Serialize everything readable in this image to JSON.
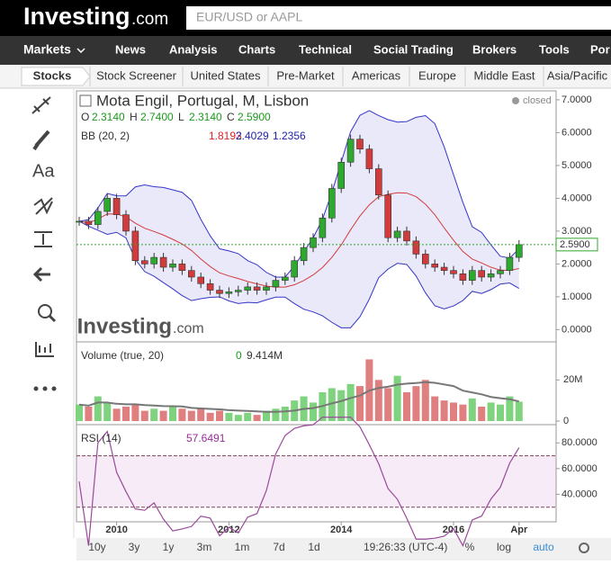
{
  "header": {
    "logo": "Investing",
    "logo_suffix": ".com",
    "search_placeholder": "EUR/USD or AAPL"
  },
  "nav": [
    "Markets",
    "News",
    "Analysis",
    "Charts",
    "Technical",
    "Social Trading",
    "Brokers",
    "Tools",
    "Por"
  ],
  "tabs": [
    "Stocks",
    "Stock Screener",
    "United States",
    "Pre-Market",
    "Americas",
    "Europe",
    "Middle East",
    "Asia/Pacific"
  ],
  "chart": {
    "title": "Mota Engil, Portugal, M, Lisbon",
    "status": "closed",
    "ohlc": {
      "o": {
        "name": "O",
        "value": 2.314,
        "label": "2.3140"
      },
      "h": {
        "name": "H",
        "value": 2.74,
        "label": "2.7400"
      },
      "l": {
        "name": "L",
        "value": 2.314,
        "label": "2.3140"
      },
      "c": {
        "name": "C",
        "value": 2.59,
        "label": "2.5900"
      }
    },
    "bb": {
      "name": "BB (20, 2)",
      "mid": "1.8193",
      "upper": "2.4029",
      "lower": "1.2356"
    },
    "watermark": "Investing",
    "watermark_suffix": ".com",
    "closes": [
      3.3,
      3.2,
      3.6,
      4.0,
      3.5,
      3.0,
      2.1,
      2.0,
      2.2,
      1.9,
      2.0,
      1.8,
      1.6,
      1.4,
      1.2,
      1.1,
      1.15,
      1.2,
      1.3,
      1.2,
      1.3,
      1.5,
      1.6,
      2.1,
      2.5,
      2.8,
      3.4,
      4.3,
      5.1,
      5.8,
      5.5,
      4.9,
      4.1,
      2.8,
      3.0,
      2.7,
      2.3,
      2.0,
      1.9,
      1.8,
      1.7,
      1.5,
      1.8,
      1.6,
      1.7,
      1.8,
      2.2,
      2.59
    ],
    "ylim": [
      -0.1,
      7.3
    ],
    "yticks": [
      {
        "value": 7,
        "label": "7.0000"
      },
      {
        "value": 6,
        "label": "6.0000"
      },
      {
        "value": 5,
        "label": "5.0000"
      },
      {
        "value": 4,
        "label": "4.0000"
      },
      {
        "value": 3,
        "label": "3.0000"
      },
      {
        "value": 2,
        "label": "2.0000"
      },
      {
        "value": 1,
        "label": "1.0000"
      },
      {
        "value": 0,
        "label": "0.0000"
      }
    ],
    "xticks": [
      {
        "value": 4,
        "label": "2010"
      },
      {
        "value": 16,
        "label": "2012"
      },
      {
        "value": 28,
        "label": "2014"
      },
      {
        "value": 40,
        "label": "2016"
      },
      {
        "value": 47,
        "label": "Apr"
      }
    ],
    "volume": {
      "name": "Volume (true, 20)",
      "extra": "0",
      "last_label": "9.414M",
      "values": [
        8,
        7,
        12,
        9,
        6,
        7,
        8,
        5,
        6,
        5,
        7,
        6,
        5,
        6,
        4,
        5,
        4,
        3,
        4,
        3,
        5,
        6,
        7,
        10,
        12,
        9,
        14,
        16,
        15,
        18,
        17,
        30,
        20,
        16,
        22,
        14,
        17,
        20,
        12,
        10,
        9,
        8,
        11,
        7,
        9,
        8,
        12,
        9.414
      ],
      "ylim": [
        0,
        35
      ],
      "yticks": [
        {
          "value": 20,
          "label": "20M"
        },
        0
      ]
    },
    "rsi": {
      "name": "RSI (14)",
      "last_label": "57.6491",
      "ylim": [
        20,
        90
      ],
      "yticks": [
        {
          "value": 80,
          "label": "80.0000"
        },
        {
          "value": 60,
          "label": "60.0000"
        },
        {
          "value": 40,
          "label": "40.0000"
        }
      ],
      "bands": [
        30,
        70
      ]
    }
  },
  "footer": {
    "ranges": [
      "10y",
      "3y",
      "1y",
      "3m",
      "1m",
      "7d",
      "1d"
    ],
    "time": "19:26:33 (UTC-4)",
    "percent": "%",
    "log": "log",
    "auto": "auto"
  }
}
